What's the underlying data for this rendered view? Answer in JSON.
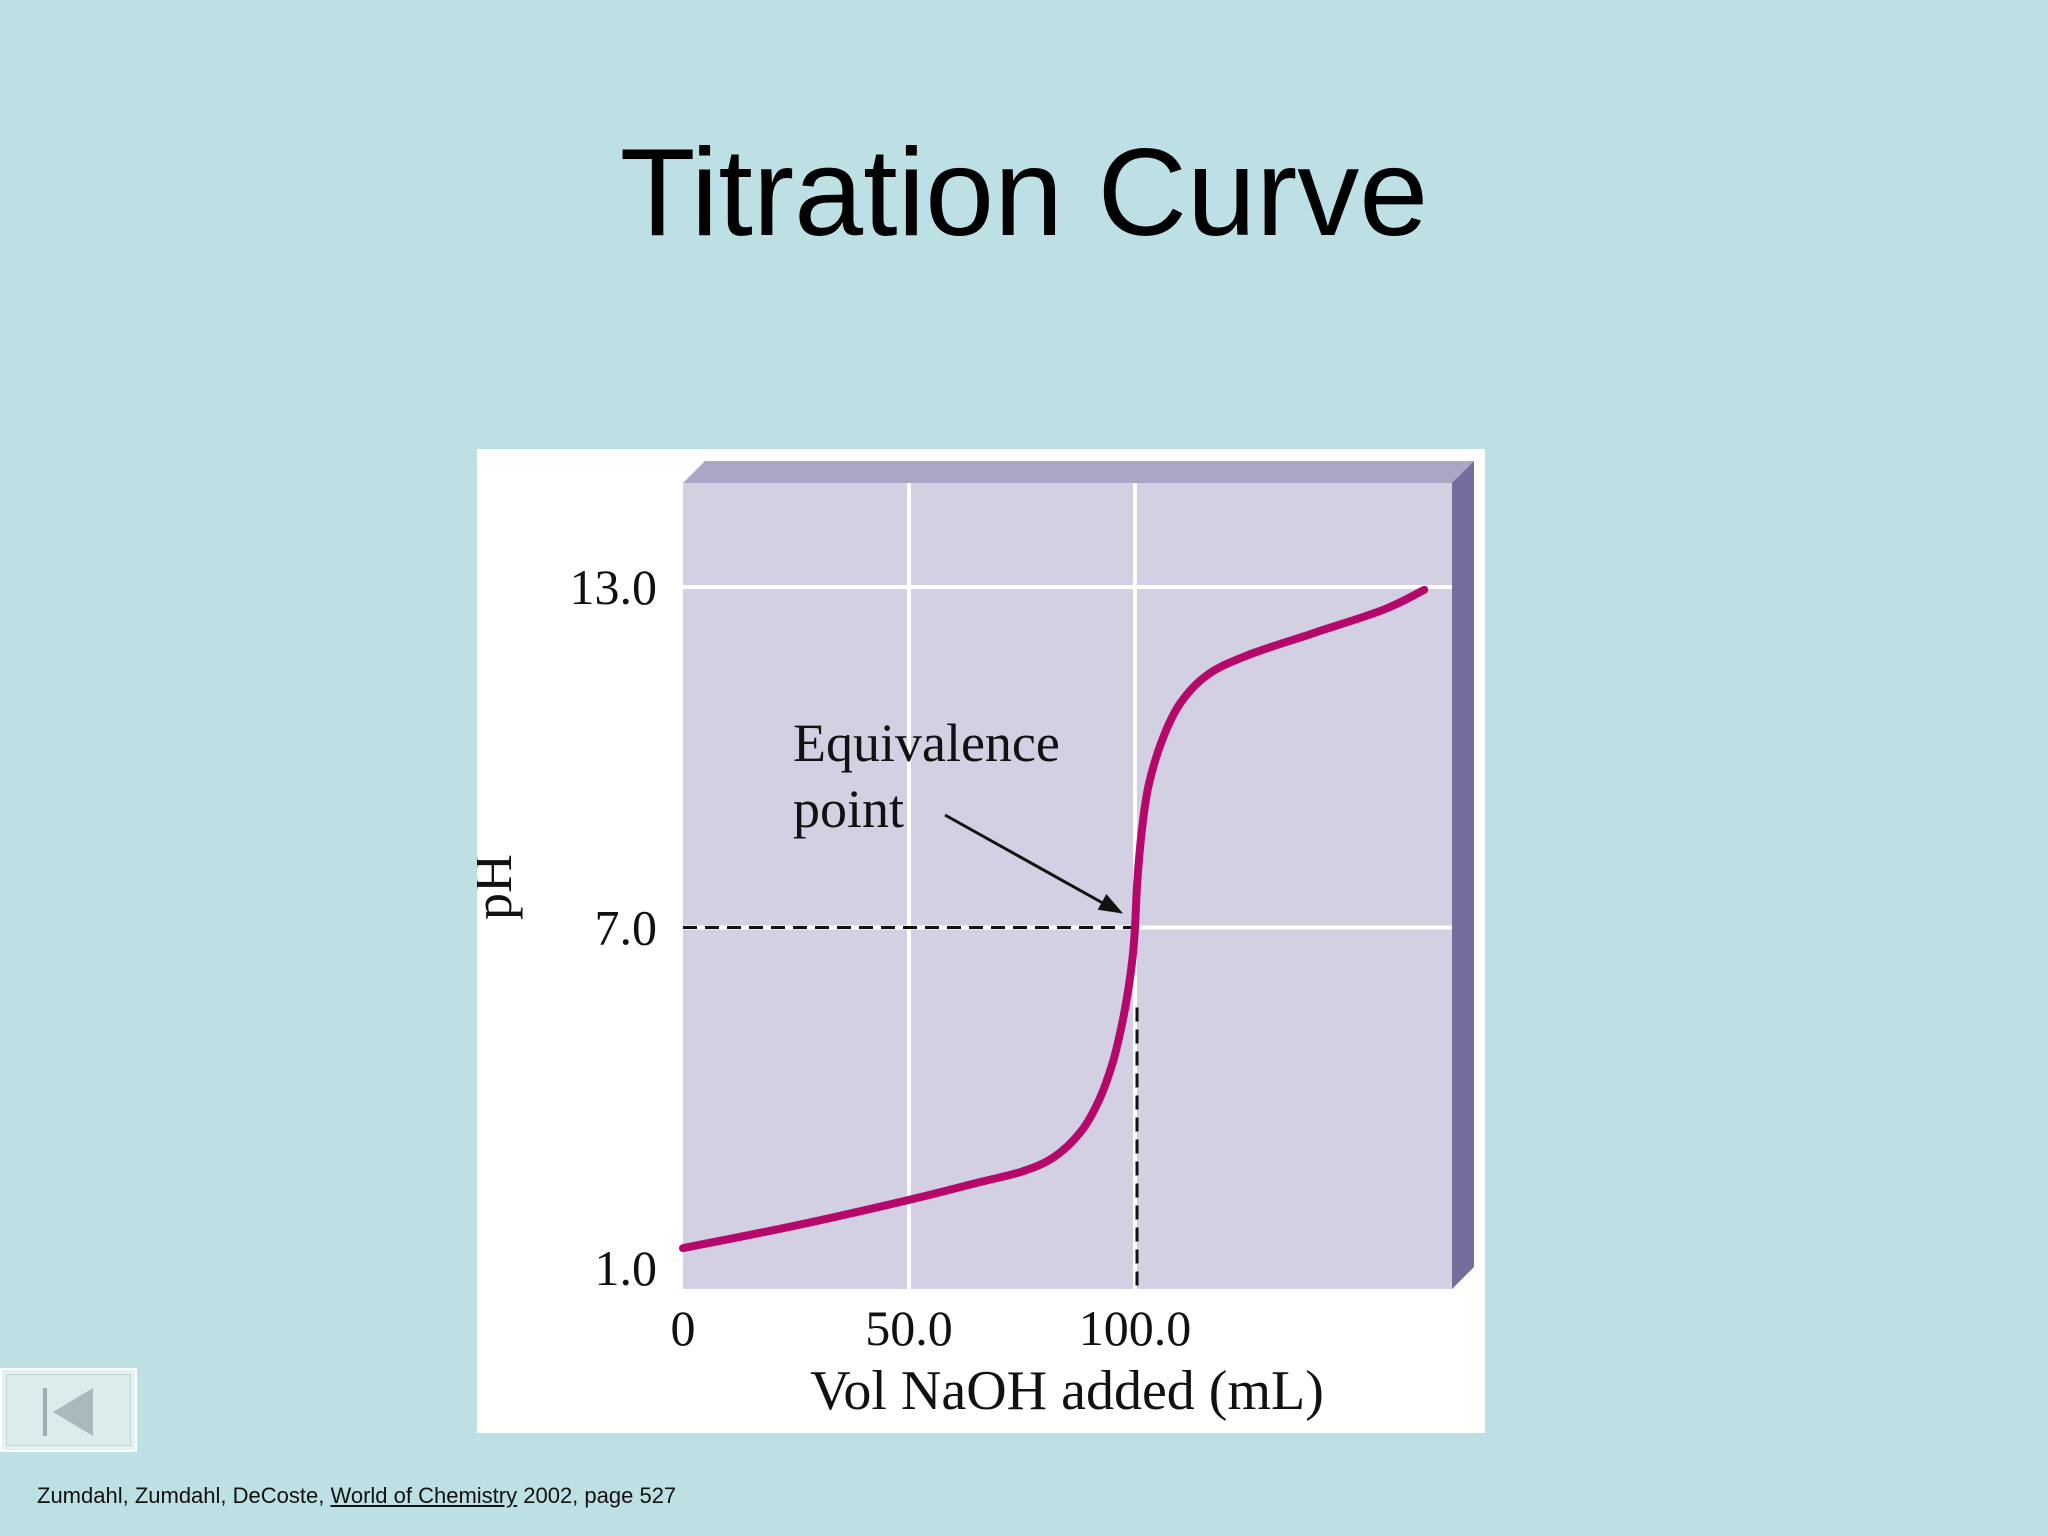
{
  "slide": {
    "title": "Titration Curve"
  },
  "citation": {
    "authors": "Zumdahl, Zumdahl, DeCoste,",
    "book_title": "World of Chemistry",
    "details": "2002, page 527"
  },
  "nav": {
    "first_slide_icon": "skip-to-start-icon"
  },
  "colors": {
    "background": "#bce0e4",
    "plot_face": "#d4d0e3",
    "plot_top": "#aaa6c6",
    "plot_side": "#736e9c",
    "curve": "#b5086a",
    "grid": "#ffffff"
  },
  "chart_data": {
    "type": "line",
    "title": "",
    "xlabel": "Vol NaOH added (mL)",
    "ylabel": "pH",
    "xlim": [
      0,
      180
    ],
    "y_ticks": [
      {
        "value": 1.0,
        "label": "1.0"
      },
      {
        "value": 7.0,
        "label": "7.0"
      },
      {
        "value": 13.0,
        "label": "13.0"
      }
    ],
    "x_ticks": [
      {
        "value": 0,
        "label": "0"
      },
      {
        "value": 50.0,
        "label": "50.0"
      },
      {
        "value": 100.0,
        "label": "100.0"
      }
    ],
    "grid": true,
    "series": [
      {
        "x": [
          0,
          25,
          50,
          65,
          75,
          82,
          88,
          92,
          95,
          97,
          98.5,
          99.5,
          100,
          100.5,
          101.5,
          103,
          106,
          110,
          116,
          125,
          140,
          155,
          164
        ],
        "y": [
          1.35,
          1.75,
          2.2,
          2.5,
          2.7,
          2.95,
          3.4,
          3.95,
          4.6,
          5.25,
          5.9,
          6.5,
          7.0,
          7.8,
          8.7,
          9.5,
          10.3,
          10.95,
          11.45,
          11.8,
          12.2,
          12.6,
          12.95
        ]
      }
    ],
    "annotations": [
      {
        "line1": "Equivalence",
        "line2": "point",
        "x": 100.0,
        "y": 7.0
      }
    ]
  }
}
